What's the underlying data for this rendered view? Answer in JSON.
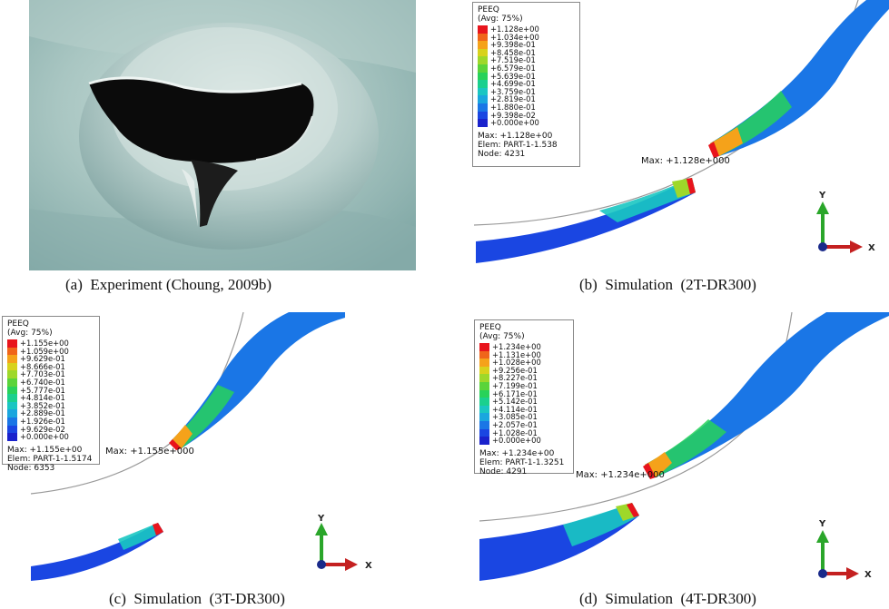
{
  "panels": [
    {
      "id": "a",
      "caption": "(a)  Experiment (Choung, 2009b)"
    },
    {
      "id": "b",
      "caption": "(b)  Simulation  (2T-DR300)",
      "legend": {
        "title": "PEEQ",
        "subtitle": "(Avg: 75%)",
        "values": [
          "+1.128e+00",
          "+1.034e+00",
          "+9.398e-01",
          "+8.458e-01",
          "+7.519e-01",
          "+6.579e-01",
          "+5.639e-01",
          "+4.699e-01",
          "+3.759e-01",
          "+2.819e-01",
          "+1.880e-01",
          "+9.398e-02",
          "+0.000e+00"
        ],
        "max": "Max: +1.128e+00",
        "elem": "Elem: PART-1-1.538",
        "node": "Node: 4231"
      },
      "max_label": "Max: +1.128e+000"
    },
    {
      "id": "c",
      "caption": "(c)  Simulation  (3T-DR300)",
      "legend": {
        "title": "PEEQ",
        "subtitle": "(Avg: 75%)",
        "values": [
          "+1.155e+00",
          "+1.059e+00",
          "+9.629e-01",
          "+8.666e-01",
          "+7.703e-01",
          "+6.740e-01",
          "+5.777e-01",
          "+4.814e-01",
          "+3.852e-01",
          "+2.889e-01",
          "+1.926e-01",
          "+9.629e-02",
          "+0.000e+00"
        ],
        "max": "Max: +1.155e+00",
        "elem": "Elem: PART-1-1.5174",
        "node": "Node: 6353"
      },
      "max_label": "Max: +1.155e+000"
    },
    {
      "id": "d",
      "caption": "(d)  Simulation  (4T-DR300)",
      "legend": {
        "title": "PEEQ",
        "subtitle": "(Avg: 75%)",
        "values": [
          "+1.234e+00",
          "+1.131e+00",
          "+1.028e+00",
          "+9.256e-01",
          "+8.227e-01",
          "+7.199e-01",
          "+6.171e-01",
          "+5.142e-01",
          "+4.114e-01",
          "+3.085e-01",
          "+2.057e-01",
          "+1.028e-01",
          "+0.000e+00"
        ],
        "max": "Max: +1.234e+00",
        "elem": "Elem: PART-1-1.3251",
        "node": "Node: 4291"
      },
      "max_label": "Max: +1.234e+000"
    }
  ],
  "axes": {
    "x": "X",
    "y": "Y"
  },
  "contour_colors": [
    "#e8141c",
    "#f0651a",
    "#f5a21a",
    "#d8d21c",
    "#9ed82a",
    "#5ad43a",
    "#28d25a",
    "#1ad08e",
    "#1ac6c2",
    "#1aa6de",
    "#1a76e6",
    "#1a46e2",
    "#1a22cc"
  ]
}
